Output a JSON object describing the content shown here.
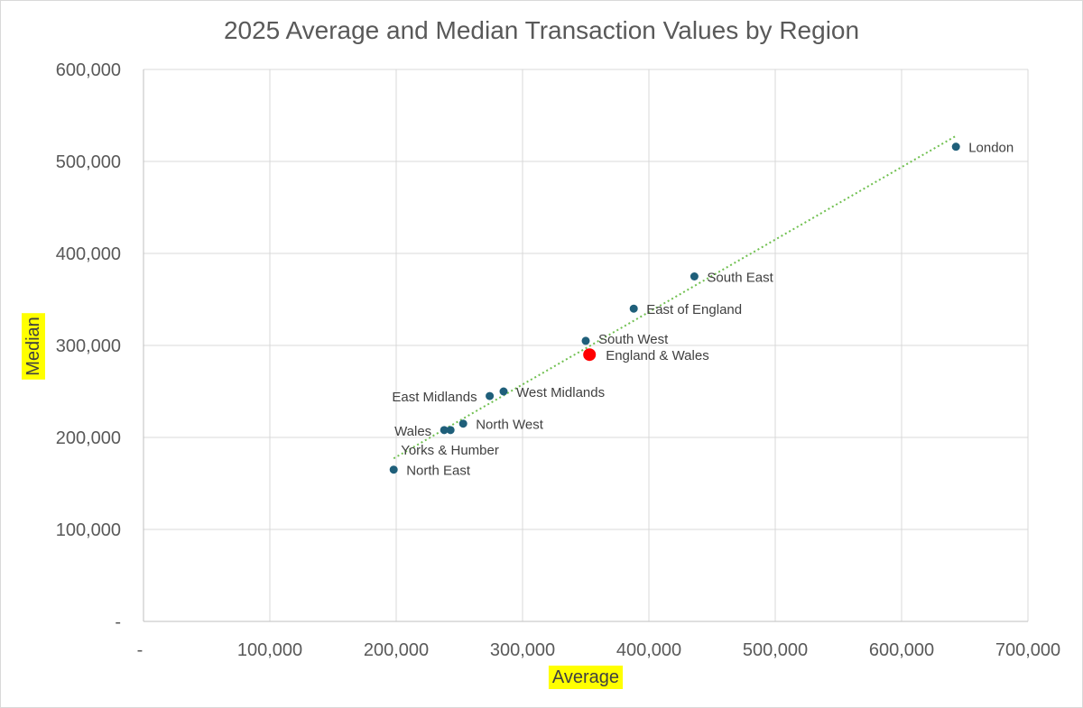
{
  "chart_data": {
    "type": "scatter",
    "title": "2025 Average and Median Transaction Values by Region",
    "xlabel": "Average",
    "ylabel": "Median",
    "xlim": [
      0,
      700000
    ],
    "ylim": [
      0,
      600000
    ],
    "x_ticks": [
      0,
      100000,
      200000,
      300000,
      400000,
      500000,
      600000,
      700000
    ],
    "y_ticks": [
      0,
      100000,
      200000,
      300000,
      400000,
      500000,
      600000
    ],
    "x_tick_labels": [
      "-",
      "100,000",
      "200,000",
      "300,000",
      "400,000",
      "500,000",
      "600,000",
      "700,000"
    ],
    "y_tick_labels": [
      "-",
      "100,000",
      "200,000",
      "300,000",
      "400,000",
      "500,000",
      "600,000"
    ],
    "grid": true,
    "axis_title_highlight": "#ffff00",
    "point_color": "#1f5f7a",
    "highlight_color": "#ff0000",
    "trendline": {
      "type": "linear",
      "color": "#70c050",
      "style": "dotted",
      "x_range": [
        198000,
        644000
      ]
    },
    "points": [
      {
        "name": "London",
        "x": 643000,
        "y": 516000
      },
      {
        "name": "South East",
        "x": 436000,
        "y": 375000
      },
      {
        "name": "East of England",
        "x": 388000,
        "y": 340000
      },
      {
        "name": "South West",
        "x": 350000,
        "y": 305000
      },
      {
        "name": "England & Wales",
        "x": 353000,
        "y": 290000,
        "highlight": true
      },
      {
        "name": "West Midlands",
        "x": 285000,
        "y": 250000
      },
      {
        "name": "East Midlands",
        "x": 274000,
        "y": 245000
      },
      {
        "name": "North West",
        "x": 253000,
        "y": 215000
      },
      {
        "name": "Wales",
        "x": 238000,
        "y": 208000
      },
      {
        "name": "Yorks & Humber",
        "x": 243000,
        "y": 208000
      },
      {
        "name": "North East",
        "x": 198000,
        "y": 165000
      }
    ]
  }
}
